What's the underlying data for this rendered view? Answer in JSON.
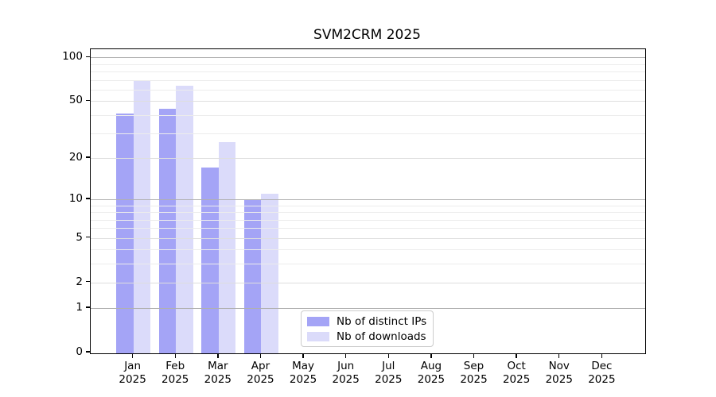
{
  "title": "SVM2CRM 2025",
  "chart_data": {
    "type": "bar",
    "title": "SVM2CRM 2025",
    "scale": "log1p",
    "grid": true,
    "ylim": [
      0,
      114
    ],
    "categories": [
      "Jan",
      "Feb",
      "Mar",
      "Apr",
      "May",
      "Jun",
      "Jul",
      "Aug",
      "Sep",
      "Oct",
      "Nov",
      "Dec"
    ],
    "x_tick_year": "2025",
    "y_tick_labels": [
      "0",
      "1",
      "2",
      "5",
      "10",
      "20",
      "50",
      "100"
    ],
    "y_tick_values": [
      0,
      1,
      2,
      5,
      10,
      20,
      50,
      100
    ],
    "gridline_values": [
      1,
      2,
      3,
      4,
      5,
      6,
      7,
      8,
      9,
      10,
      20,
      30,
      40,
      50,
      60,
      70,
      80,
      90,
      100
    ],
    "series": [
      {
        "name": "Nb of distinct IPs",
        "color": "#a4a4f6",
        "values": [
          41,
          44,
          17,
          10,
          0,
          0,
          0,
          0,
          0,
          0,
          0,
          0
        ]
      },
      {
        "name": "Nb of downloads",
        "color": "#dbdbfa",
        "values": [
          69,
          64,
          26,
          11,
          0,
          0,
          0,
          0,
          0,
          0,
          0,
          0
        ]
      }
    ],
    "legend": {
      "position": "lower center",
      "entries": [
        "Nb of distinct IPs",
        "Nb of downloads"
      ]
    },
    "colors": {
      "major_grid": "#b0b0b0",
      "mid_grid": "#dedede",
      "minor_grid": "#ececec",
      "axis": "#000000"
    }
  }
}
